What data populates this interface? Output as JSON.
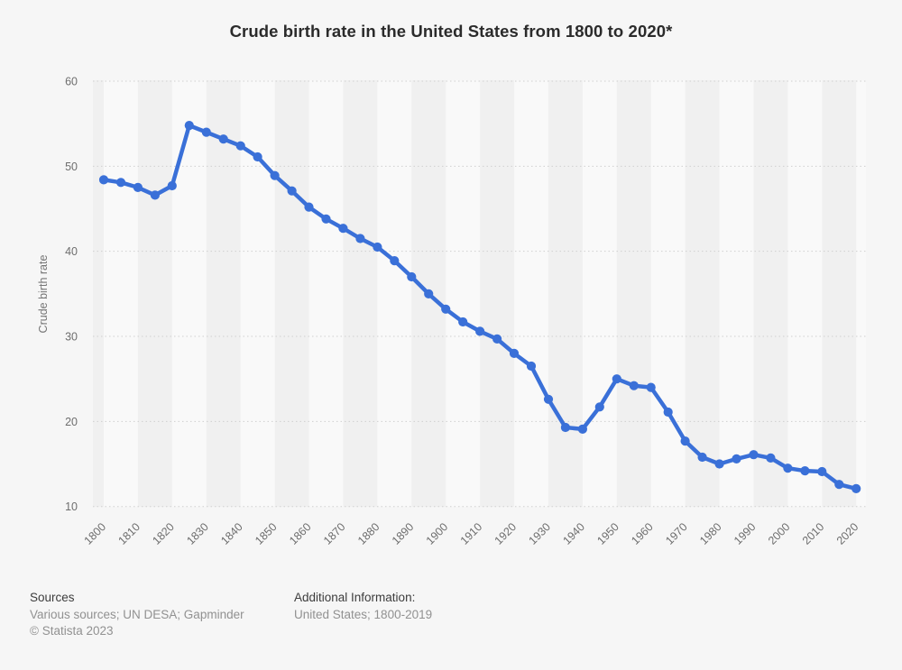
{
  "header": {
    "title": "Crude birth rate in the United States from 1800 to 2020*"
  },
  "chart_data": {
    "type": "line",
    "title": "Crude birth rate in the United States from 1800 to 2020*",
    "xlabel": "",
    "ylabel": "Crude birth rate",
    "ylim": [
      10,
      60
    ],
    "xlim": [
      1800,
      2020
    ],
    "grid": true,
    "legend": false,
    "series_name": "Crude birth rate",
    "x": [
      1800,
      1805,
      1810,
      1815,
      1820,
      1825,
      1830,
      1835,
      1840,
      1845,
      1850,
      1855,
      1860,
      1865,
      1870,
      1875,
      1880,
      1885,
      1890,
      1895,
      1900,
      1905,
      1910,
      1915,
      1920,
      1925,
      1930,
      1935,
      1940,
      1945,
      1950,
      1955,
      1960,
      1965,
      1970,
      1975,
      1980,
      1985,
      1990,
      1995,
      2000,
      2005,
      2010,
      2015,
      2020
    ],
    "values": [
      48.4,
      48.1,
      47.5,
      46.6,
      47.7,
      54.8,
      54.0,
      53.2,
      52.4,
      51.1,
      48.9,
      47.1,
      45.2,
      43.8,
      42.7,
      41.5,
      40.5,
      38.9,
      37.0,
      35.0,
      33.2,
      31.7,
      30.6,
      29.7,
      28.0,
      26.5,
      22.6,
      19.3,
      19.1,
      21.7,
      25.0,
      24.2,
      24.0,
      21.1,
      17.7,
      15.8,
      15.0,
      15.6,
      16.1,
      15.7,
      14.5,
      14.2,
      14.1,
      12.6,
      12.1
    ],
    "x_tick_labels": [
      "1800",
      "1810",
      "1820",
      "1830",
      "1840",
      "1850",
      "1860",
      "1870",
      "1880",
      "1890",
      "1900",
      "1910",
      "1920",
      "1930",
      "1940",
      "1950",
      "1960",
      "1970",
      "1980",
      "1990",
      "2000",
      "2010",
      "2020"
    ],
    "y_tick_labels": [
      "60",
      "50",
      "40",
      "30",
      "20",
      "10"
    ]
  },
  "colors": {
    "line": "#3a70d8",
    "background": "#f6f6f6",
    "stripe_light": "#f9f9f9",
    "stripe_dark": "#f0f0f0",
    "gridline": "#cfcfcf",
    "title_text": "#2b2b2b",
    "axis_text": "#6e6e6e"
  },
  "footer": {
    "sources_heading": "Sources",
    "sources_text": "Various sources; UN DESA; Gapminder",
    "copyright": "© Statista 2023",
    "additional_heading": "Additional Information:",
    "additional_text": "United States; 1800-2019"
  }
}
